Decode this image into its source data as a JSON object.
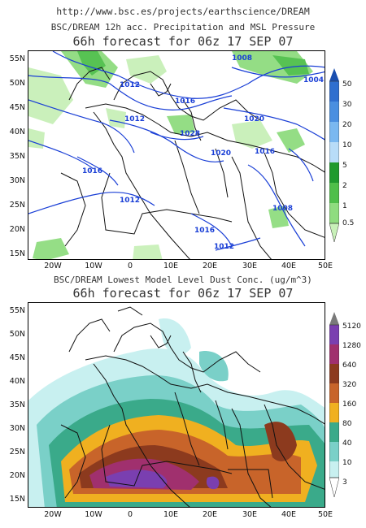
{
  "header": {
    "url": "http://www.bsc.es/projects/earthscience/DREAM"
  },
  "top_panel": {
    "title_line1": "BSC/DREAM 12h acc. Precipitation and MSL Pressure",
    "title_line2": "66h forecast for 06z 17 SEP 07",
    "colorbar_labels": [
      "50",
      "30",
      "20",
      "10",
      "5",
      "2",
      "1",
      "0.5"
    ],
    "colorbar_colors": [
      "#2f6fcf",
      "#4a8fe0",
      "#7ab8f0",
      "#b8dcf8",
      "#1f9a2e",
      "#4fbf4a",
      "#8fdc7f",
      "#c8f0b8"
    ],
    "isobar_labels": [
      "1012",
      "1008",
      "1016",
      "1012",
      "1020",
      "1028",
      "1020",
      "1016",
      "1016",
      "1012",
      "1008",
      "1016",
      "1012",
      "1004"
    ]
  },
  "bottom_panel": {
    "title_line1": "BSC/DREAM Lowest Model Level Dust Conc. (ug/m^3)",
    "title_line2": "66h forecast for 06z 17 SEP 07",
    "colorbar_labels": [
      "5120",
      "1280",
      "640",
      "320",
      "160",
      "80",
      "40",
      "10",
      "3"
    ],
    "colorbar_colors": [
      "#7a7a7a",
      "#7a3fb0",
      "#a0306e",
      "#8c3a1e",
      "#c8642a",
      "#f0b020",
      "#3aaa8a",
      "#7ad0c8",
      "#c8f0f0"
    ]
  },
  "axes": {
    "lat_labels": [
      "55N",
      "50N",
      "45N",
      "40N",
      "35N",
      "30N",
      "25N",
      "20N",
      "15N"
    ],
    "lon_labels": [
      "20W",
      "10W",
      "0",
      "10E",
      "20E",
      "30E",
      "40E",
      "50E"
    ]
  }
}
